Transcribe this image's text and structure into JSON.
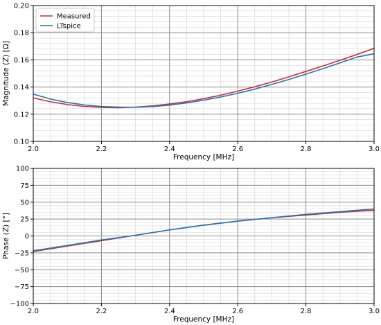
{
  "chart_data": [
    {
      "type": "line",
      "xlabel": "Frequency [MHz]",
      "ylabel": "Magnitude (Z) [Ω]",
      "xlim": [
        2.0,
        3.0
      ],
      "ylim": [
        0.1,
        0.2
      ],
      "x_ticks": [
        "2.0",
        "2.2",
        "2.4",
        "2.6",
        "2.8",
        "3.0"
      ],
      "y_ticks": [
        "0.10",
        "0.12",
        "0.14",
        "0.16",
        "0.18",
        "0.20"
      ],
      "grid": true,
      "minor_grid": true,
      "legend": "top-left",
      "x": [
        2.0,
        2.05,
        2.1,
        2.15,
        2.2,
        2.25,
        2.3,
        2.35,
        2.4,
        2.45,
        2.5,
        2.55,
        2.6,
        2.65,
        2.7,
        2.75,
        2.8,
        2.85,
        2.9,
        2.95,
        3.0
      ],
      "series": [
        {
          "name": "Measured",
          "color": "#d62728",
          "values": [
            0.132,
            0.1292,
            0.1271,
            0.1257,
            0.125,
            0.1248,
            0.1252,
            0.1261,
            0.1275,
            0.1292,
            0.1314,
            0.134,
            0.137,
            0.1402,
            0.1437,
            0.1475,
            0.1515,
            0.1555,
            0.1597,
            0.164,
            0.1685
          ]
        },
        {
          "name": "LTspice",
          "color": "#1f77b4",
          "values": [
            0.1348,
            0.1312,
            0.1286,
            0.1268,
            0.1257,
            0.1252,
            0.1251,
            0.1256,
            0.1267,
            0.1283,
            0.1303,
            0.1327,
            0.1354,
            0.1385,
            0.1419,
            0.1456,
            0.1495,
            0.1535,
            0.1578,
            0.1621,
            0.1645
          ]
        }
      ]
    },
    {
      "type": "line",
      "xlabel": "Frequency [MHz]",
      "ylabel": "Phase (Z) [°]",
      "xlim": [
        2.0,
        3.0
      ],
      "ylim": [
        -100,
        100
      ],
      "x_ticks": [
        "2.0",
        "2.2",
        "2.4",
        "2.6",
        "2.8",
        "3.0"
      ],
      "y_ticks": [
        "−100",
        "−75",
        "−50",
        "−25",
        "0",
        "25",
        "50",
        "75",
        "100"
      ],
      "grid": true,
      "minor_grid": true,
      "x": [
        2.0,
        2.1,
        2.2,
        2.3,
        2.4,
        2.5,
        2.6,
        2.7,
        2.8,
        2.9,
        3.0
      ],
      "series": [
        {
          "name": "Measured",
          "color": "#d62728",
          "values": [
            -23,
            -15,
            -7,
            1,
            9,
            16,
            22,
            27,
            31,
            35,
            38
          ]
        },
        {
          "name": "LTspice",
          "color": "#1f77b4",
          "values": [
            -22,
            -14,
            -6,
            1,
            9,
            16,
            22,
            27,
            32,
            36,
            40
          ]
        }
      ]
    }
  ]
}
